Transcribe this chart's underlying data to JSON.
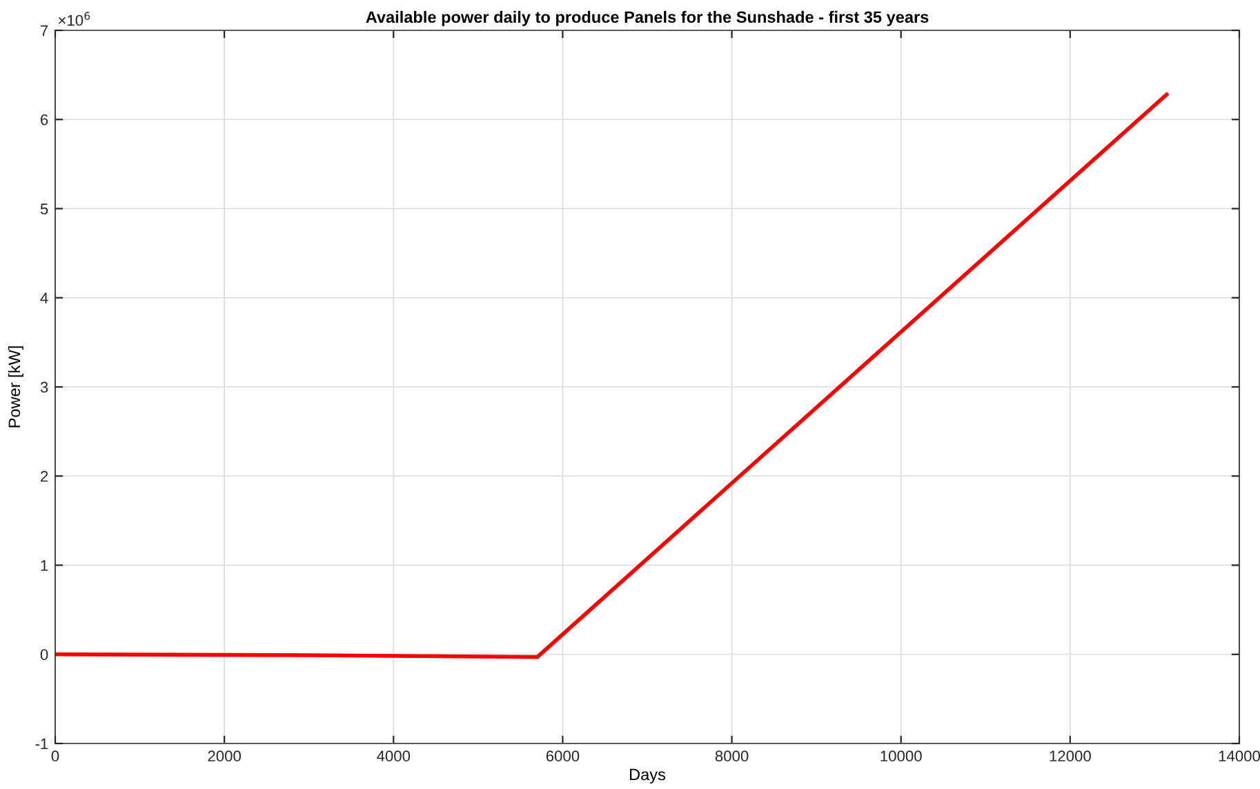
{
  "chart_data": {
    "type": "line",
    "title": "Available power daily to produce Panels for the Sunshade - first 35 years",
    "xlabel": "Days",
    "ylabel": "Power [kW]",
    "annotations": [
      "×10$^{6}$"
    ],
    "series": [
      {
        "color": "#ff0000",
        "x": [
          0,
          3000,
          5700,
          13140
        ],
        "values": [
          0,
          -0.01,
          -0.03,
          6.28
        ]
      }
    ],
    "xlim": [
      0,
      14000
    ],
    "xticks": [
      0,
      2000,
      4000,
      6000,
      8000,
      10000,
      12000,
      14000
    ],
    "ylim": [
      -1,
      7
    ],
    "yticks": [
      -1,
      0,
      1,
      2,
      3,
      4,
      5,
      6,
      7
    ],
    "grid": true,
    "legend": false,
    "marker": "none",
    "line_style": "solid"
  }
}
